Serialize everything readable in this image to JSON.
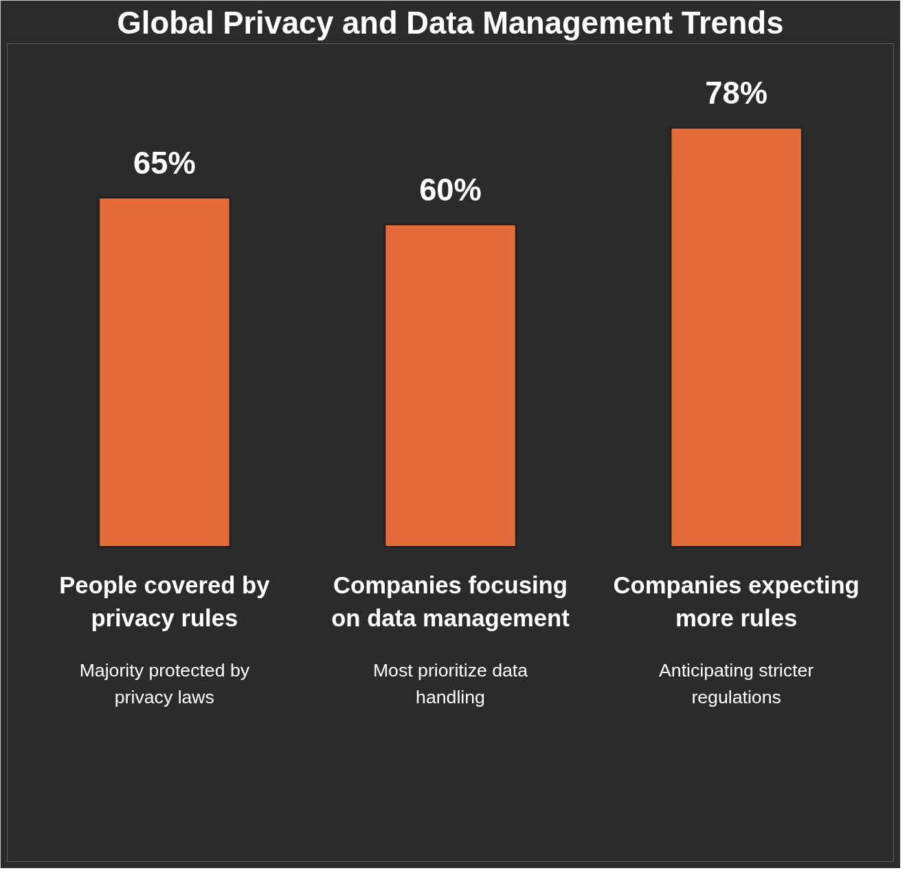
{
  "chart_data": {
    "type": "bar",
    "title": "Global Privacy and Data Management Trends",
    "categories": [
      "People covered by privacy rules",
      "Companies focusing on data management",
      "Companies expecting more rules"
    ],
    "values": [
      65,
      60,
      78
    ],
    "value_labels": [
      "65%",
      "60%",
      "78%"
    ],
    "color": "#e46c3b",
    "annotations": [
      "Majority protected by privacy laws",
      "Most prioritize data handling",
      "Anticipating stricter regulations"
    ]
  }
}
